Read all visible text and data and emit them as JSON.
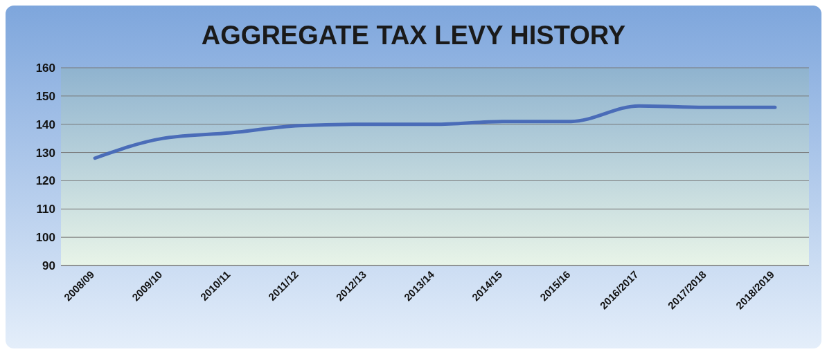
{
  "chart_data": {
    "type": "line",
    "title": "AGGREGATE TAX LEVY HISTORY",
    "categories": [
      "2008/09",
      "2009/10",
      "2010/11",
      "2011/12",
      "2012/13",
      "2013/14",
      "2014/15",
      "2015/16",
      "2016/2017",
      "2017/2018",
      "2018/2019"
    ],
    "series": [
      {
        "color": "#4a6cb8",
        "values": [
          128,
          135,
          137,
          139.5,
          140,
          140,
          141,
          141,
          146.5,
          146,
          146
        ]
      }
    ],
    "ylim": [
      90,
      160
    ],
    "yticks": [
      90,
      100,
      110,
      120,
      130,
      140,
      150,
      160
    ],
    "grid": "y",
    "marker": "none",
    "line_style": "solid",
    "legend": false
  }
}
